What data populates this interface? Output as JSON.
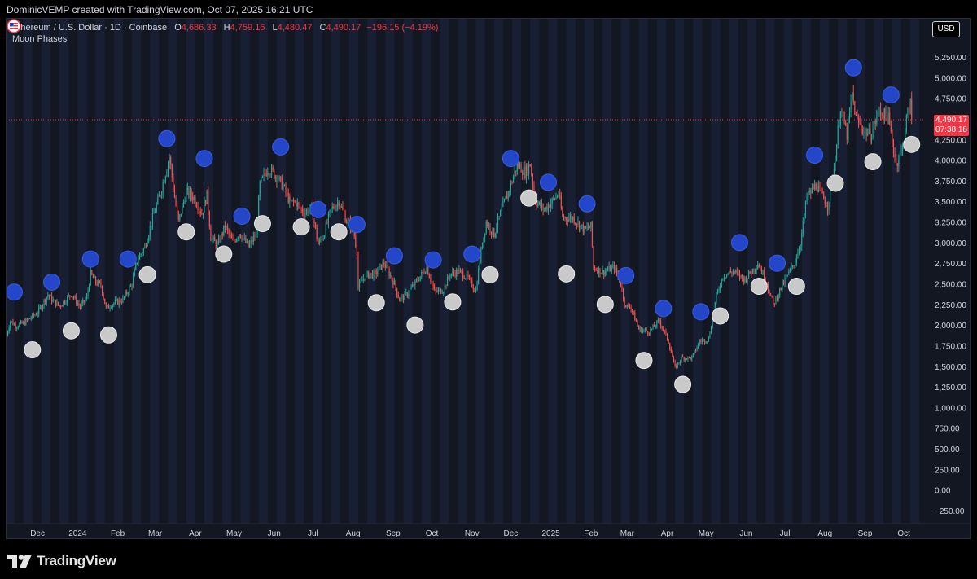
{
  "header": {
    "attribution": "DominicVEMP created with TradingView.com, Oct 07, 2025 16:21 UTC"
  },
  "legend": {
    "symbol": "Ethereum / U.S. Dollar · 1D · Coinbase",
    "o_label": "O",
    "o_value": "4,686.33",
    "h_label": "H",
    "h_value": "4,759.16",
    "l_label": "L",
    "l_value": "4,480.47",
    "c_label": "C",
    "c_value": "4,490.17",
    "change": "−196.15 (−4.19%)",
    "indicator": "Moon Phases"
  },
  "currency_button": "USD",
  "last_price": {
    "value": "4,490.17",
    "countdown": "07:38:18"
  },
  "branding": {
    "name": "TradingView"
  },
  "colors": {
    "background": "#131722",
    "up": "#26a69a",
    "down": "#ef5350",
    "new_moon": "#2447c9",
    "full_moon": "#c9c9c9",
    "price_line": "#f23645"
  },
  "chart_data": {
    "type": "candlestick",
    "title": "Ethereum / U.S. Dollar · 1D · Coinbase",
    "ylim": [
      -250,
      5250
    ],
    "y_ticks": [
      -250,
      0,
      250,
      500,
      750,
      1000,
      1250,
      1500,
      1750,
      2000,
      2250,
      2500,
      2750,
      3000,
      3250,
      3500,
      3750,
      4000,
      4250,
      4500,
      4750,
      5000,
      5250
    ],
    "y_tick_labels": [
      "−250.00",
      "0.00",
      "250.00",
      "500.00",
      "750.00",
      "1,000.00",
      "1,250.00",
      "1,500.00",
      "1,750.00",
      "2,000.00",
      "2,250.00",
      "2,500.00",
      "2,750.00",
      "3,000.00",
      "3,250.00",
      "3,500.00",
      "3,750.00",
      "4,000.00",
      "4,250.00",
      "4,500.00",
      "4,750.00",
      "5,000.00",
      "5,250.00"
    ],
    "x_range": [
      "2023-11-07",
      "2025-10-16"
    ],
    "x_ticks": [
      {
        "date": "2023-12-01",
        "label": "Dec"
      },
      {
        "date": "2024-01-01",
        "label": "2024"
      },
      {
        "date": "2024-02-01",
        "label": "Feb"
      },
      {
        "date": "2024-03-01",
        "label": "Mar"
      },
      {
        "date": "2024-04-01",
        "label": "Apr"
      },
      {
        "date": "2024-05-01",
        "label": "May"
      },
      {
        "date": "2024-06-01",
        "label": "Jun"
      },
      {
        "date": "2024-07-01",
        "label": "Jul"
      },
      {
        "date": "2024-08-01",
        "label": "Aug"
      },
      {
        "date": "2024-09-01",
        "label": "Sep"
      },
      {
        "date": "2024-10-01",
        "label": "Oct"
      },
      {
        "date": "2024-11-01",
        "label": "Nov"
      },
      {
        "date": "2024-12-01",
        "label": "Dec"
      },
      {
        "date": "2025-01-01",
        "label": "2025"
      },
      {
        "date": "2025-02-01",
        "label": "Feb"
      },
      {
        "date": "2025-03-01",
        "label": "Mar"
      },
      {
        "date": "2025-04-01",
        "label": "Apr"
      },
      {
        "date": "2025-05-01",
        "label": "May"
      },
      {
        "date": "2025-06-01",
        "label": "Jun"
      },
      {
        "date": "2025-07-01",
        "label": "Jul"
      },
      {
        "date": "2025-08-01",
        "label": "Aug"
      },
      {
        "date": "2025-09-01",
        "label": "Sep"
      },
      {
        "date": "2025-10-01",
        "label": "Oct"
      }
    ],
    "last_price": 4490.17,
    "price_path": [
      [
        "2023-11-07",
        1880
      ],
      [
        "2023-11-10",
        2050
      ],
      [
        "2023-11-14",
        1990
      ],
      [
        "2023-11-20",
        2020
      ],
      [
        "2023-11-25",
        2080
      ],
      [
        "2023-12-01",
        2150
      ],
      [
        "2023-12-05",
        2260
      ],
      [
        "2023-12-09",
        2370
      ],
      [
        "2023-12-13",
        2290
      ],
      [
        "2023-12-18",
        2230
      ],
      [
        "2023-12-23",
        2310
      ],
      [
        "2023-12-27",
        2380
      ],
      [
        "2024-01-03",
        2220
      ],
      [
        "2024-01-08",
        2330
      ],
      [
        "2024-01-11",
        2620
      ],
      [
        "2024-01-15",
        2520
      ],
      [
        "2024-01-19",
        2480
      ],
      [
        "2024-01-23",
        2200
      ],
      [
        "2024-01-28",
        2260
      ],
      [
        "2024-02-05",
        2310
      ],
      [
        "2024-02-12",
        2500
      ],
      [
        "2024-02-16",
        2780
      ],
      [
        "2024-02-22",
        2950
      ],
      [
        "2024-02-28",
        3300
      ],
      [
        "2024-03-05",
        3600
      ],
      [
        "2024-03-12",
        4040
      ],
      [
        "2024-03-16",
        3550
      ],
      [
        "2024-03-19",
        3250
      ],
      [
        "2024-03-25",
        3620
      ],
      [
        "2024-03-31",
        3540
      ],
      [
        "2024-04-06",
        3350
      ],
      [
        "2024-04-10",
        3580
      ],
      [
        "2024-04-13",
        3060
      ],
      [
        "2024-04-18",
        2960
      ],
      [
        "2024-04-24",
        3200
      ],
      [
        "2024-04-30",
        3000
      ],
      [
        "2024-05-05",
        3120
      ],
      [
        "2024-05-12",
        2950
      ],
      [
        "2024-05-18",
        3100
      ],
      [
        "2024-05-21",
        3700
      ],
      [
        "2024-05-27",
        3900
      ],
      [
        "2024-06-03",
        3800
      ],
      [
        "2024-06-08",
        3680
      ],
      [
        "2024-06-13",
        3500
      ],
      [
        "2024-06-18",
        3480
      ],
      [
        "2024-06-24",
        3360
      ],
      [
        "2024-06-30",
        3420
      ],
      [
        "2024-07-05",
        2980
      ],
      [
        "2024-07-09",
        3080
      ],
      [
        "2024-07-15",
        3400
      ],
      [
        "2024-07-21",
        3500
      ],
      [
        "2024-07-27",
        3260
      ],
      [
        "2024-08-01",
        3180
      ],
      [
        "2024-08-04",
        2900
      ],
      [
        "2024-08-05",
        2450
      ],
      [
        "2024-08-10",
        2600
      ],
      [
        "2024-08-18",
        2620
      ],
      [
        "2024-08-25",
        2750
      ],
      [
        "2024-09-02",
        2500
      ],
      [
        "2024-09-06",
        2300
      ],
      [
        "2024-09-12",
        2380
      ],
      [
        "2024-09-20",
        2550
      ],
      [
        "2024-09-27",
        2700
      ],
      [
        "2024-10-03",
        2400
      ],
      [
        "2024-10-10",
        2430
      ],
      [
        "2024-10-15",
        2620
      ],
      [
        "2024-10-22",
        2650
      ],
      [
        "2024-10-28",
        2580
      ],
      [
        "2024-11-04",
        2420
      ],
      [
        "2024-11-08",
        2900
      ],
      [
        "2024-11-12",
        3250
      ],
      [
        "2024-11-18",
        3100
      ],
      [
        "2024-11-24",
        3400
      ],
      [
        "2024-11-30",
        3650
      ],
      [
        "2024-12-06",
        3950
      ],
      [
        "2024-12-12",
        3850
      ],
      [
        "2024-12-16",
        3950
      ],
      [
        "2024-12-20",
        3500
      ],
      [
        "2024-12-27",
        3400
      ],
      [
        "2025-01-02",
        3500
      ],
      [
        "2025-01-07",
        3600
      ],
      [
        "2025-01-10",
        3300
      ],
      [
        "2025-01-18",
        3300
      ],
      [
        "2025-01-27",
        3150
      ],
      [
        "2025-02-01",
        3200
      ],
      [
        "2025-02-03",
        2700
      ],
      [
        "2025-02-10",
        2640
      ],
      [
        "2025-02-19",
        2700
      ],
      [
        "2025-02-24",
        2500
      ],
      [
        "2025-02-28",
        2200
      ],
      [
        "2025-03-03",
        2250
      ],
      [
        "2025-03-10",
        1950
      ],
      [
        "2025-03-18",
        1920
      ],
      [
        "2025-03-26",
        2050
      ],
      [
        "2025-04-02",
        1800
      ],
      [
        "2025-04-07",
        1480
      ],
      [
        "2025-04-12",
        1600
      ],
      [
        "2025-04-20",
        1600
      ],
      [
        "2025-04-26",
        1800
      ],
      [
        "2025-05-03",
        1830
      ],
      [
        "2025-05-09",
        2350
      ],
      [
        "2025-05-14",
        2600
      ],
      [
        "2025-05-22",
        2650
      ],
      [
        "2025-05-31",
        2550
      ],
      [
        "2025-06-10",
        2750
      ],
      [
        "2025-06-16",
        2550
      ],
      [
        "2025-06-22",
        2250
      ],
      [
        "2025-06-27",
        2420
      ],
      [
        "2025-07-02",
        2570
      ],
      [
        "2025-07-09",
        2780
      ],
      [
        "2025-07-13",
        3000
      ],
      [
        "2025-07-18",
        3550
      ],
      [
        "2025-07-25",
        3700
      ],
      [
        "2025-08-01",
        3500
      ],
      [
        "2025-08-03",
        3450
      ],
      [
        "2025-08-08",
        3900
      ],
      [
        "2025-08-13",
        4650
      ],
      [
        "2025-08-18",
        4300
      ],
      [
        "2025-08-22",
        4800
      ],
      [
        "2025-08-25",
        4500
      ],
      [
        "2025-08-30",
        4380
      ],
      [
        "2025-09-05",
        4300
      ],
      [
        "2025-09-12",
        4600
      ],
      [
        "2025-09-19",
        4500
      ],
      [
        "2025-09-25",
        3950
      ],
      [
        "2025-09-30",
        4150
      ],
      [
        "2025-10-03",
        4500
      ],
      [
        "2025-10-06",
        4686
      ],
      [
        "2025-10-07",
        4490
      ]
    ],
    "new_moons": [
      [
        "2023-11-13",
        2400
      ],
      [
        "2023-12-12",
        2520
      ],
      [
        "2024-01-11",
        2800
      ],
      [
        "2024-02-09",
        2800
      ],
      [
        "2024-03-10",
        4260
      ],
      [
        "2024-04-08",
        4020
      ],
      [
        "2024-05-07",
        3320
      ],
      [
        "2024-06-06",
        4160
      ],
      [
        "2024-07-05",
        3400
      ],
      [
        "2024-08-04",
        3220
      ],
      [
        "2024-09-02",
        2840
      ],
      [
        "2024-10-02",
        2790
      ],
      [
        "2024-11-01",
        2860
      ],
      [
        "2024-12-01",
        4020
      ],
      [
        "2024-12-30",
        3730
      ],
      [
        "2025-01-29",
        3470
      ],
      [
        "2025-02-28",
        2600
      ],
      [
        "2025-03-29",
        2200
      ],
      [
        "2025-04-27",
        2160
      ],
      [
        "2025-05-27",
        3000
      ],
      [
        "2025-06-25",
        2750
      ],
      [
        "2025-07-24",
        4060
      ],
      [
        "2025-08-23",
        5120
      ],
      [
        "2025-09-21",
        4790
      ]
    ],
    "full_moons": [
      [
        "2023-11-27",
        1700
      ],
      [
        "2023-12-27",
        1930
      ],
      [
        "2024-01-25",
        1880
      ],
      [
        "2024-02-24",
        2610
      ],
      [
        "2024-03-25",
        3130
      ],
      [
        "2024-04-23",
        2860
      ],
      [
        "2024-05-23",
        3230
      ],
      [
        "2024-06-22",
        3190
      ],
      [
        "2024-07-21",
        3130
      ],
      [
        "2024-08-19",
        2270
      ],
      [
        "2024-09-18",
        2000
      ],
      [
        "2024-10-17",
        2280
      ],
      [
        "2024-11-15",
        2610
      ],
      [
        "2024-12-15",
        3540
      ],
      [
        "2025-01-13",
        2620
      ],
      [
        "2025-02-12",
        2250
      ],
      [
        "2025-03-14",
        1570
      ],
      [
        "2025-04-13",
        1280
      ],
      [
        "2025-05-12",
        2110
      ],
      [
        "2025-06-11",
        2470
      ],
      [
        "2025-07-10",
        2470
      ],
      [
        "2025-08-09",
        3720
      ],
      [
        "2025-09-07",
        3980
      ],
      [
        "2025-10-07",
        4190
      ]
    ]
  }
}
